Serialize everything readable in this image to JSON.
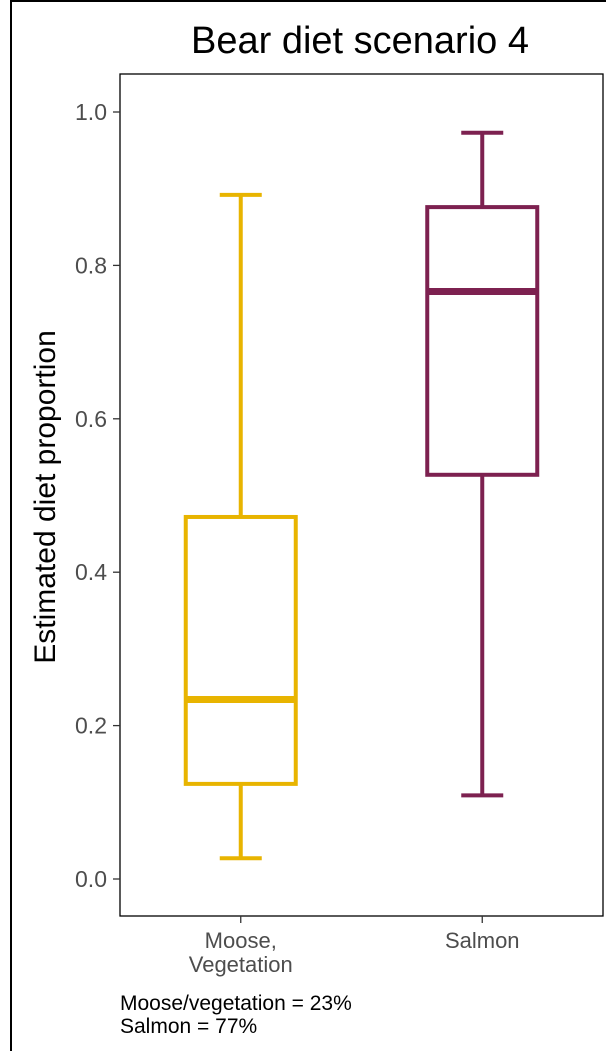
{
  "chart_data": {
    "type": "boxplot",
    "title": "Bear diet scenario 4",
    "ylabel": "Estimated diet proportion",
    "xlabel": "",
    "ylim": [
      -0.05,
      1.05
    ],
    "yticks": [
      0.0,
      0.2,
      0.4,
      0.6,
      0.8,
      1.0
    ],
    "ytick_labels": [
      "0.0",
      "0.2",
      "0.4",
      "0.6",
      "0.8",
      "1.0"
    ],
    "grid": false,
    "categories": [
      {
        "label_lines": [
          "Moose,",
          "Vegetation"
        ],
        "color": "#E8B400",
        "stats": {
          "min": 0.027,
          "q1": 0.124,
          "median": 0.234,
          "q3": 0.472,
          "max": 0.892
        }
      },
      {
        "label_lines": [
          "Salmon"
        ],
        "color": "#7D2150",
        "stats": {
          "min": 0.109,
          "q1": 0.527,
          "median": 0.766,
          "q3": 0.876,
          "max": 0.973
        }
      }
    ]
  },
  "caption": {
    "line1": "Moose/vegetation = 23%",
    "line2": "Salmon = 77%"
  }
}
